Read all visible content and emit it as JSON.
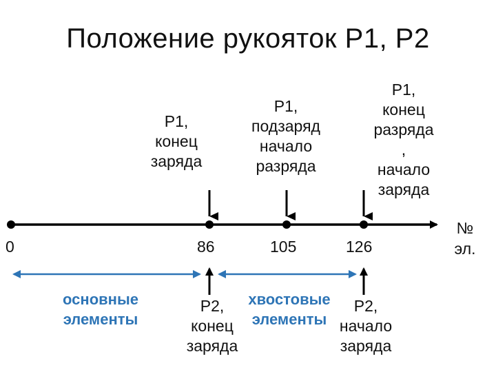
{
  "title": "Положение рукояток Р1, Р2",
  "axis": {
    "end_label": "№\nэл.",
    "ticks": [
      "0",
      "86",
      "105",
      "126"
    ]
  },
  "annotations_top": {
    "p1_end_charge": "Р1,\nконец\nзаряда",
    "p1_recharge_start_discharge": "Р1,\nподзаряд\nначало\nразряда",
    "p1_end_discharge_start_charge": "Р1,\nконец\nразряда\n,\nначало\nзаряда"
  },
  "annotations_bottom": {
    "p2_end_charge": "Р2,\nконец\nзаряда",
    "p2_start_charge": "Р2,\nначало\nзаряда"
  },
  "ranges": {
    "main_elements": "основные\nэлементы",
    "tail_elements": "хвостовые\nэлементы"
  },
  "colors": {
    "axis": "#000000",
    "accent": "#2e75b6"
  }
}
